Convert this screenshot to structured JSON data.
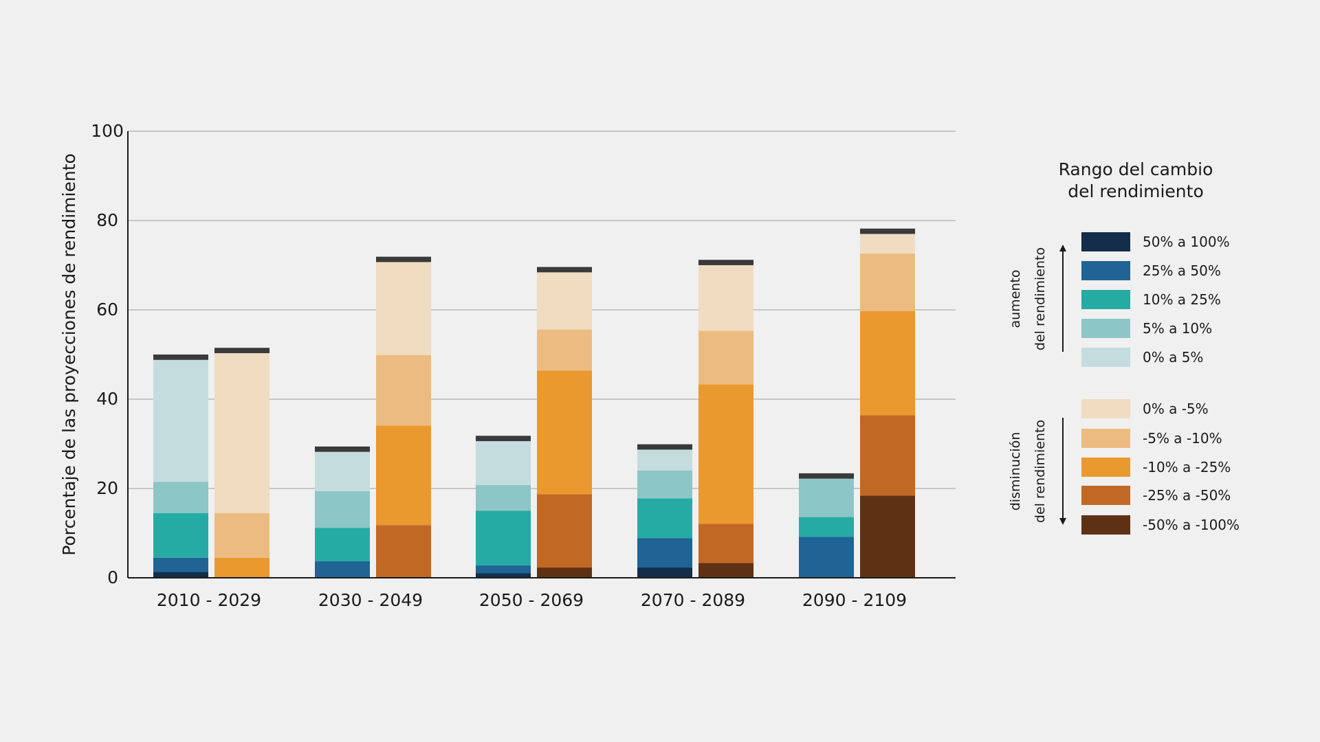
{
  "chart_data": {
    "type": "bar",
    "stacked": true,
    "title": "",
    "xlabel": "",
    "ylabel": "Porcentaje de las proyecciones de rendimiento",
    "ylim": [
      0,
      100
    ],
    "yticks": [
      0,
      20,
      40,
      60,
      80,
      100
    ],
    "grid": true,
    "categories": [
      "2010 - 2029",
      "2030 - 2049",
      "2050 - 2069",
      "2070 - 2089",
      "2090 - 2109"
    ],
    "bars": [
      {
        "category": "2010 - 2029",
        "group": "aumento",
        "segments": [
          1.3,
          3.2,
          10.0,
          7.0,
          27.3
        ],
        "cap": 1.2
      },
      {
        "category": "2010 - 2029",
        "group": "disminucion",
        "segments": [
          0,
          0,
          4.5,
          10.0,
          35.8
        ],
        "cap": 1.2
      },
      {
        "category": "2030 - 2049",
        "group": "aumento",
        "segments": [
          0,
          3.7,
          7.5,
          8.2,
          8.8
        ],
        "cap": 1.2
      },
      {
        "category": "2030 - 2049",
        "group": "disminucion",
        "segments": [
          0,
          11.8,
          22.3,
          15.8,
          20.8
        ],
        "cap": 1.2
      },
      {
        "category": "2050 - 2069",
        "group": "aumento",
        "segments": [
          1.0,
          1.8,
          12.2,
          5.8,
          9.8
        ],
        "cap": 1.2
      },
      {
        "category": "2050 - 2069",
        "group": "disminucion",
        "segments": [
          2.3,
          16.4,
          27.7,
          9.2,
          12.8
        ],
        "cap": 1.2
      },
      {
        "category": "2070 - 2089",
        "group": "aumento",
        "segments": [
          2.3,
          6.6,
          8.9,
          6.2,
          4.7
        ],
        "cap": 1.2
      },
      {
        "category": "2070 - 2089",
        "group": "disminucion",
        "segments": [
          3.3,
          8.8,
          31.2,
          12.0,
          14.7
        ],
        "cap": 1.2
      },
      {
        "category": "2090 - 2109",
        "group": "aumento",
        "segments": [
          0,
          9.2,
          4.4,
          8.6,
          0
        ],
        "cap": 1.2
      },
      {
        "category": "2090 - 2109",
        "group": "disminucion",
        "segments": [
          18.4,
          18.0,
          23.3,
          12.9,
          4.4
        ],
        "cap": 1.2
      }
    ],
    "series_increase": [
      {
        "name": "50% a 100%",
        "color": "#132d4a"
      },
      {
        "name": "25% a 50%",
        "color": "#1f6494"
      },
      {
        "name": "10% a 25%",
        "color": "#25aba4"
      },
      {
        "name": "5% a 10%",
        "color": "#8dc6c6"
      },
      {
        "name": "0% a 5%",
        "color": "#c4dcdd"
      }
    ],
    "series_decrease": [
      {
        "name": "-50% a -100%",
        "color": "#5e3114"
      },
      {
        "name": "-25% a -50%",
        "color": "#c26825"
      },
      {
        "name": "-10% a -25%",
        "color": "#ea992f"
      },
      {
        "name": "-5% a -10%",
        "color": "#ebbb81"
      },
      {
        "name": "0% a -5%",
        "color": "#f0dcc0"
      }
    ],
    "cap_color": "#3a3a3a",
    "legend": {
      "title_line1": "Rango del cambio",
      "title_line2": "del rendimiento",
      "placement": "right",
      "increase_group_label_line1": "aumento",
      "increase_group_label_line2": "del rendimiento",
      "decrease_group_label_line1": "disminución",
      "decrease_group_label_line2": "del rendimiento",
      "increase_items": [
        "50% a 100%",
        "25% a 50%",
        "10% a 25%",
        "5% a 10%",
        "0% a 5%"
      ],
      "decrease_items": [
        "0% a -5%",
        "-5% a -10%",
        "-10% a -25%",
        "-25% a -50%",
        "-50% a -100%"
      ]
    }
  }
}
